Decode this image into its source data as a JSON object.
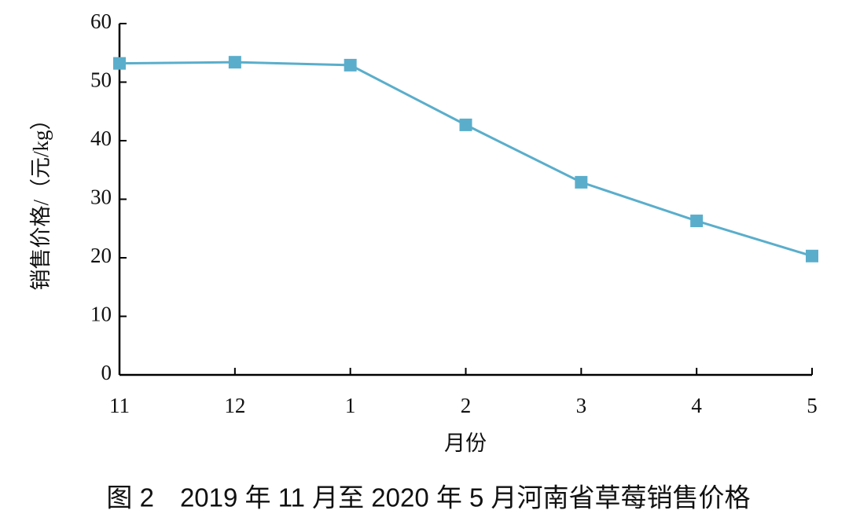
{
  "chart_data": {
    "type": "line",
    "title": "图 2　2019 年 11 月至 2020 年 5 月河南省草莓销售价格",
    "x_label": "月份",
    "y_label": "销售价格/（元/kg）",
    "categories": [
      "11",
      "12",
      "1",
      "2",
      "3",
      "4",
      "5"
    ],
    "series": [
      {
        "name": "销售价格",
        "color": "#5aaecb",
        "values": [
          53.2,
          53.4,
          52.9,
          42.7,
          32.9,
          26.3,
          20.3
        ]
      }
    ],
    "ylim": [
      0,
      60
    ],
    "yticks": [
      0,
      10,
      20,
      30,
      40,
      50,
      60
    ],
    "grid": false
  }
}
